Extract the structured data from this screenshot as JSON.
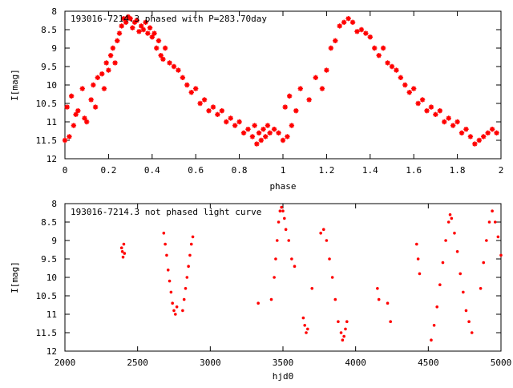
{
  "chart_data": [
    {
      "type": "scatter",
      "title": "193016-7214.3 phased with P=283.70day",
      "xlabel": "phase",
      "ylabel": "I[mag]",
      "xlim": [
        0,
        2
      ],
      "ylim": [
        12,
        8
      ],
      "y_inverted": true,
      "xticks": [
        "0",
        "0.2",
        "0.4",
        "0.6",
        "0.8",
        "1",
        "1.2",
        "1.4",
        "1.6",
        "1.8",
        "2"
      ],
      "xtick_values": [
        0,
        0.2,
        0.4,
        0.6,
        0.8,
        1,
        1.2,
        1.4,
        1.6,
        1.8,
        2
      ],
      "yticks": [
        "8",
        "8.5",
        "9",
        "9.5",
        "10",
        "10.5",
        "11",
        "11.5",
        "12"
      ],
      "ytick_values": [
        8,
        8.5,
        9,
        9.5,
        10,
        10.5,
        11,
        11.5,
        12
      ],
      "marker": "star",
      "grid": false,
      "series": [
        {
          "color": "#ff0000",
          "points": [
            [
              0.0,
              11.5
            ],
            [
              0.01,
              10.6
            ],
            [
              0.02,
              11.4
            ],
            [
              0.03,
              10.3
            ],
            [
              0.04,
              11.1
            ],
            [
              0.05,
              10.8
            ],
            [
              0.06,
              10.7
            ],
            [
              0.08,
              10.1
            ],
            [
              0.09,
              10.9
            ],
            [
              0.1,
              11.0
            ],
            [
              0.12,
              10.4
            ],
            [
              0.13,
              10.0
            ],
            [
              0.14,
              10.6
            ],
            [
              0.15,
              9.8
            ],
            [
              0.17,
              9.7
            ],
            [
              0.18,
              10.1
            ],
            [
              0.19,
              9.4
            ],
            [
              0.2,
              9.6
            ],
            [
              0.21,
              9.2
            ],
            [
              0.22,
              9.0
            ],
            [
              0.23,
              9.4
            ],
            [
              0.24,
              8.8
            ],
            [
              0.25,
              8.6
            ],
            [
              0.26,
              8.4
            ],
            [
              0.27,
              8.2
            ],
            [
              0.28,
              8.3
            ],
            [
              0.29,
              8.15
            ],
            [
              0.3,
              8.2
            ],
            [
              0.31,
              8.45
            ],
            [
              0.32,
              8.3
            ],
            [
              0.33,
              8.25
            ],
            [
              0.34,
              8.55
            ],
            [
              0.35,
              8.4
            ],
            [
              0.36,
              8.5
            ],
            [
              0.37,
              8.3
            ],
            [
              0.38,
              8.6
            ],
            [
              0.39,
              8.45
            ],
            [
              0.4,
              8.7
            ],
            [
              0.41,
              8.6
            ],
            [
              0.42,
              9.0
            ],
            [
              0.43,
              8.8
            ],
            [
              0.44,
              9.2
            ],
            [
              0.45,
              9.3
            ],
            [
              0.46,
              9.0
            ],
            [
              0.48,
              9.4
            ],
            [
              0.5,
              9.5
            ],
            [
              0.52,
              9.6
            ],
            [
              0.54,
              9.8
            ],
            [
              0.56,
              10.0
            ],
            [
              0.58,
              10.2
            ],
            [
              0.6,
              10.1
            ],
            [
              0.62,
              10.5
            ],
            [
              0.64,
              10.4
            ],
            [
              0.66,
              10.7
            ],
            [
              0.68,
              10.6
            ],
            [
              0.7,
              10.8
            ],
            [
              0.72,
              10.7
            ],
            [
              0.74,
              11.0
            ],
            [
              0.76,
              10.9
            ],
            [
              0.78,
              11.1
            ],
            [
              0.8,
              11.0
            ],
            [
              0.82,
              11.3
            ],
            [
              0.84,
              11.2
            ],
            [
              0.86,
              11.4
            ],
            [
              0.87,
              11.1
            ],
            [
              0.88,
              11.6
            ],
            [
              0.89,
              11.3
            ],
            [
              0.9,
              11.5
            ],
            [
              0.91,
              11.2
            ],
            [
              0.92,
              11.4
            ],
            [
              0.93,
              11.1
            ],
            [
              0.94,
              11.3
            ],
            [
              0.96,
              11.2
            ],
            [
              0.98,
              11.3
            ],
            [
              1.0,
              11.5
            ],
            [
              1.01,
              10.6
            ],
            [
              1.02,
              11.4
            ],
            [
              1.03,
              10.3
            ],
            [
              1.04,
              11.1
            ],
            [
              1.06,
              10.7
            ],
            [
              1.08,
              10.1
            ],
            [
              1.12,
              10.4
            ],
            [
              1.15,
              9.8
            ],
            [
              1.18,
              10.1
            ],
            [
              1.2,
              9.6
            ],
            [
              1.22,
              9.0
            ],
            [
              1.24,
              8.8
            ],
            [
              1.26,
              8.4
            ],
            [
              1.28,
              8.3
            ],
            [
              1.3,
              8.2
            ],
            [
              1.32,
              8.3
            ],
            [
              1.34,
              8.55
            ],
            [
              1.36,
              8.5
            ],
            [
              1.38,
              8.6
            ],
            [
              1.4,
              8.7
            ],
            [
              1.42,
              9.0
            ],
            [
              1.44,
              9.2
            ],
            [
              1.46,
              9.0
            ],
            [
              1.48,
              9.4
            ],
            [
              1.5,
              9.5
            ],
            [
              1.52,
              9.6
            ],
            [
              1.54,
              9.8
            ],
            [
              1.56,
              10.0
            ],
            [
              1.58,
              10.2
            ],
            [
              1.6,
              10.1
            ],
            [
              1.62,
              10.5
            ],
            [
              1.64,
              10.4
            ],
            [
              1.66,
              10.7
            ],
            [
              1.68,
              10.6
            ],
            [
              1.7,
              10.8
            ],
            [
              1.72,
              10.7
            ],
            [
              1.74,
              11.0
            ],
            [
              1.76,
              10.9
            ],
            [
              1.78,
              11.1
            ],
            [
              1.8,
              11.0
            ],
            [
              1.82,
              11.3
            ],
            [
              1.84,
              11.2
            ],
            [
              1.86,
              11.4
            ],
            [
              1.88,
              11.6
            ],
            [
              1.9,
              11.5
            ],
            [
              1.92,
              11.4
            ],
            [
              1.94,
              11.3
            ],
            [
              1.96,
              11.2
            ],
            [
              1.98,
              11.3
            ]
          ]
        }
      ]
    },
    {
      "type": "scatter",
      "title": "193016-7214.3 not phased light curve",
      "xlabel": "hjd0",
      "ylabel": "I[mag]",
      "xlim": [
        2000,
        5000
      ],
      "ylim": [
        12,
        8
      ],
      "y_inverted": true,
      "xticks": [
        "2000",
        "2500",
        "3000",
        "3500",
        "4000",
        "4500",
        "5000"
      ],
      "xtick_values": [
        2000,
        2500,
        3000,
        3500,
        4000,
        4500,
        5000
      ],
      "yticks": [
        "8",
        "8.5",
        "9",
        "9.5",
        "10",
        "10.5",
        "11",
        "11.5",
        "12"
      ],
      "ytick_values": [
        8,
        8.5,
        9,
        9.5,
        10,
        10.5,
        11,
        11.5,
        12
      ],
      "marker": "dot",
      "grid": false,
      "series": [
        {
          "color": "#ff0000",
          "points": [
            [
              2390,
              9.2
            ],
            [
              2395,
              9.3
            ],
            [
              2400,
              9.45
            ],
            [
              2405,
              9.1
            ],
            [
              2410,
              9.35
            ],
            [
              2680,
              8.8
            ],
            [
              2690,
              9.1
            ],
            [
              2700,
              9.4
            ],
            [
              2710,
              9.8
            ],
            [
              2720,
              10.1
            ],
            [
              2730,
              10.4
            ],
            [
              2740,
              10.7
            ],
            [
              2750,
              10.9
            ],
            [
              2760,
              11.0
            ],
            [
              2770,
              10.8
            ],
            [
              2810,
              10.9
            ],
            [
              2820,
              10.6
            ],
            [
              2830,
              10.3
            ],
            [
              2840,
              10.0
            ],
            [
              2850,
              9.7
            ],
            [
              2860,
              9.4
            ],
            [
              2870,
              9.1
            ],
            [
              2880,
              8.9
            ],
            [
              3330,
              10.7
            ],
            [
              3420,
              10.6
            ],
            [
              3440,
              10.0
            ],
            [
              3450,
              9.5
            ],
            [
              3460,
              9.0
            ],
            [
              3470,
              8.5
            ],
            [
              3480,
              8.2
            ],
            [
              3490,
              8.1
            ],
            [
              3500,
              8.2
            ],
            [
              3510,
              8.4
            ],
            [
              3520,
              8.7
            ],
            [
              3540,
              9.0
            ],
            [
              3560,
              9.5
            ],
            [
              3580,
              9.7
            ],
            [
              3640,
              11.1
            ],
            [
              3650,
              11.3
            ],
            [
              3660,
              11.5
            ],
            [
              3670,
              11.4
            ],
            [
              3700,
              10.3
            ],
            [
              3760,
              8.8
            ],
            [
              3780,
              8.7
            ],
            [
              3800,
              9.0
            ],
            [
              3820,
              9.5
            ],
            [
              3840,
              10.0
            ],
            [
              3860,
              10.6
            ],
            [
              3880,
              11.2
            ],
            [
              3900,
              11.5
            ],
            [
              3910,
              11.7
            ],
            [
              3920,
              11.6
            ],
            [
              3930,
              11.4
            ],
            [
              3940,
              11.2
            ],
            [
              4150,
              10.3
            ],
            [
              4160,
              10.6
            ],
            [
              4220,
              10.7
            ],
            [
              4240,
              11.2
            ],
            [
              4420,
              9.1
            ],
            [
              4430,
              9.5
            ],
            [
              4440,
              9.9
            ],
            [
              4520,
              11.7
            ],
            [
              4540,
              11.3
            ],
            [
              4560,
              10.8
            ],
            [
              4580,
              10.2
            ],
            [
              4600,
              9.6
            ],
            [
              4620,
              9.0
            ],
            [
              4640,
              8.5
            ],
            [
              4650,
              8.3
            ],
            [
              4660,
              8.4
            ],
            [
              4680,
              8.8
            ],
            [
              4700,
              9.3
            ],
            [
              4720,
              9.9
            ],
            [
              4740,
              10.4
            ],
            [
              4760,
              10.9
            ],
            [
              4780,
              11.2
            ],
            [
              4800,
              11.5
            ],
            [
              4860,
              10.3
            ],
            [
              4880,
              9.6
            ],
            [
              4900,
              9.0
            ],
            [
              4920,
              8.5
            ],
            [
              4940,
              8.2
            ],
            [
              4960,
              8.5
            ],
            [
              4980,
              8.9
            ],
            [
              5000,
              9.4
            ]
          ]
        }
      ]
    }
  ]
}
